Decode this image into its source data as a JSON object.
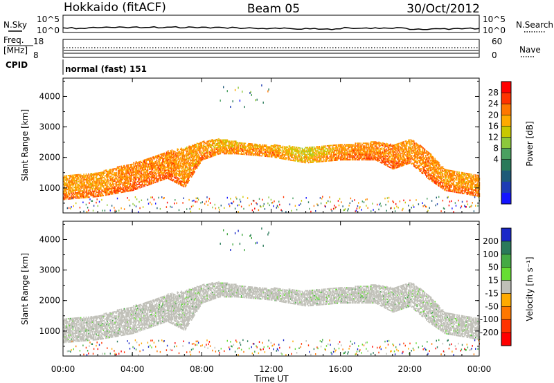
{
  "header": {
    "radar": "Hokkaido (fitACF)",
    "beam": "Beam 05",
    "date": "30/Oct/2012"
  },
  "top_panels": {
    "nsky_label": "N.Sky",
    "nsearch_label": "N.Search",
    "nsky_ticks": [
      "10^5",
      "10^0"
    ],
    "nsearch_ticks": [
      "10^5",
      "10^0"
    ],
    "freq_label_1": "Freq.",
    "freq_label_2": "[MHz]",
    "freq_ticks": [
      "18",
      "8"
    ],
    "nave_label": "Nave",
    "nave_ticks": [
      "60",
      "0"
    ],
    "cpid_label": "CPID",
    "cpid_text": "normal (fast) 151"
  },
  "colorbars": {
    "power": {
      "title": "Power [dB]",
      "labels": [
        "28",
        "24",
        "20",
        "16",
        "12",
        "8",
        "4"
      ],
      "colors": [
        "#ff0000",
        "#ff3300",
        "#ff7700",
        "#ffaa00",
        "#c8c800",
        "#8cc83c",
        "#4aa060",
        "#2a7a5a",
        "#1e5a78",
        "#1e3cb4",
        "#1414ff"
      ]
    },
    "velocity": {
      "title": "Velocity [m s⁻¹]",
      "labels": [
        "200",
        "100",
        "50",
        "15",
        "-15",
        "-50",
        "-100",
        "-200"
      ],
      "colors": [
        "#1a28c8",
        "#2a7a5a",
        "#44aa44",
        "#66dd33",
        "#c0c0b8",
        "#ffaa00",
        "#ff7700",
        "#ff3300",
        "#ff0000"
      ]
    }
  },
  "axes": {
    "xlabel": "Time UT",
    "xticks": [
      "00:00",
      "04:00",
      "08:00",
      "12:00",
      "16:00",
      "20:00",
      "00:00"
    ],
    "ylabel": "Slant Range [km]",
    "yticks": [
      "4000",
      "3000",
      "2000",
      "1000"
    ]
  },
  "chart_data": [
    {
      "type": "heatmap",
      "title": "Power [dB]",
      "xlabel": "Time UT",
      "ylabel": "Slant Range [km]",
      "x_range_hours": [
        0,
        24
      ],
      "y_range_km": [
        180,
        4600
      ],
      "color_range": [
        0,
        32
      ],
      "scatter_bands": [
        {
          "t": 0,
          "lo": 600,
          "hi": 1400,
          "power": 26
        },
        {
          "t": 2,
          "lo": 700,
          "hi": 1500,
          "power": 26
        },
        {
          "t": 4,
          "lo": 900,
          "hi": 1800,
          "power": 27
        },
        {
          "t": 6,
          "lo": 1300,
          "hi": 2200,
          "power": 27
        },
        {
          "t": 7,
          "lo": 1000,
          "hi": 2300,
          "power": 26
        },
        {
          "t": 8,
          "lo": 1900,
          "hi": 2500,
          "power": 26
        },
        {
          "t": 9,
          "lo": 2100,
          "hi": 2600,
          "power": 24
        },
        {
          "t": 10,
          "lo": 2100,
          "hi": 2500,
          "power": 25
        },
        {
          "t": 12,
          "lo": 2000,
          "hi": 2400,
          "power": 25
        },
        {
          "t": 14,
          "lo": 1800,
          "hi": 2300,
          "power": 22
        },
        {
          "t": 16,
          "lo": 1900,
          "hi": 2400,
          "power": 26
        },
        {
          "t": 18,
          "lo": 1900,
          "hi": 2500,
          "power": 27
        },
        {
          "t": 19,
          "lo": 1600,
          "hi": 2400,
          "power": 27
        },
        {
          "t": 20,
          "lo": 1800,
          "hi": 2600,
          "power": 26
        },
        {
          "t": 21,
          "lo": 1300,
          "hi": 2200,
          "power": 27
        },
        {
          "t": 22,
          "lo": 900,
          "hi": 1600,
          "power": 26
        },
        {
          "t": 24,
          "lo": 700,
          "hi": 1400,
          "power": 26
        }
      ]
    },
    {
      "type": "heatmap",
      "title": "Velocity [m s⁻¹]",
      "xlabel": "Time UT",
      "ylabel": "Slant Range [km]",
      "x_range_hours": [
        0,
        24
      ],
      "y_range_km": [
        180,
        4600
      ],
      "color_range": [
        -200,
        200
      ],
      "note_values": "ground scatter (grey, -15 to 15) dominates; sparse green/blue ionospheric echoes"
    }
  ]
}
